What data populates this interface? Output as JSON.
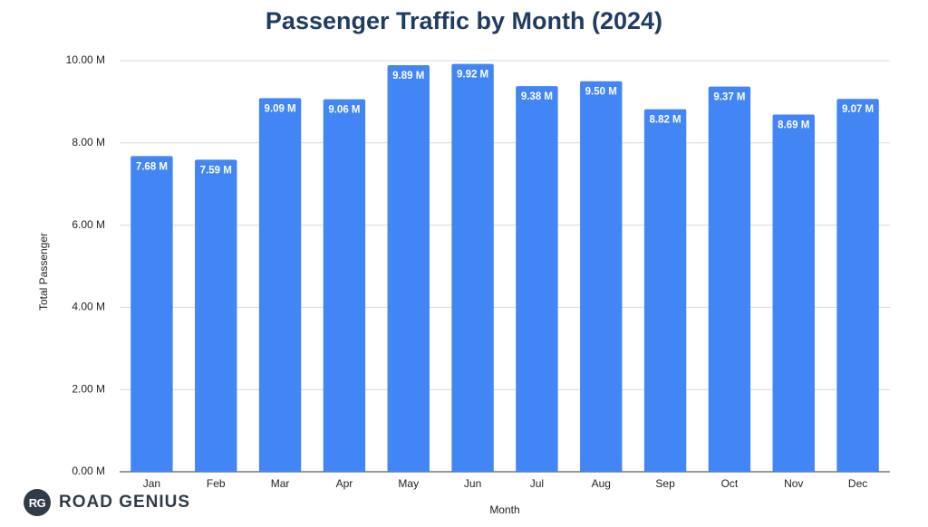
{
  "chart_data": {
    "type": "bar",
    "title": "Passenger Traffic by Month (2024)",
    "xlabel": "Month",
    "ylabel": "Total Passenger",
    "categories": [
      "Jan",
      "Feb",
      "Mar",
      "Apr",
      "May",
      "Jun",
      "Jul",
      "Aug",
      "Sep",
      "Oct",
      "Nov",
      "Dec"
    ],
    "values": [
      7.68,
      7.59,
      9.09,
      9.06,
      9.89,
      9.92,
      9.38,
      9.5,
      8.82,
      9.37,
      8.69,
      9.07
    ],
    "data_labels": [
      "7.68 M",
      "7.59 M",
      "9.09 M",
      "9.06 M",
      "9.89 M",
      "9.92 M",
      "9.38 M",
      "9.50 M",
      "8.82 M",
      "9.37 M",
      "8.69 M",
      "9.07 M"
    ],
    "y_ticks": [
      "0.00 M",
      "2.00 M",
      "4.00 M",
      "6.00 M",
      "8.00 M",
      "10.00 M"
    ],
    "ylim": [
      0,
      10
    ],
    "grid": true,
    "legend": "none",
    "bar_color": "#4285f4"
  },
  "logo": {
    "badge": "RG",
    "text": "ROAD GENIUS"
  }
}
